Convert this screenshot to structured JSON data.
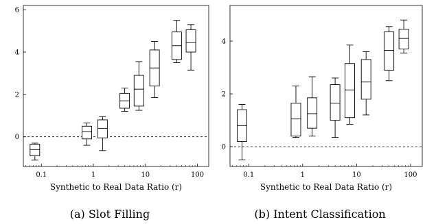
{
  "chart_data": [
    {
      "type": "box",
      "caption": "(a) Slot Filling",
      "xlabel": "Synthetic to Real Data Ratio (r)",
      "ylabel": "",
      "x_scale": "log",
      "xlim": [
        0.045,
        165
      ],
      "ylim": [
        -1.4,
        6.2
      ],
      "x_ticks": [
        {
          "value": 0.1,
          "label": "0.1"
        },
        {
          "value": 1,
          "label": "1"
        },
        {
          "value": 10,
          "label": "10"
        },
        {
          "value": 100,
          "label": "100"
        }
      ],
      "y_ticks": [
        {
          "value": 0,
          "label": "0"
        },
        {
          "value": 2,
          "label": "2"
        },
        {
          "value": 4,
          "label": "4"
        },
        {
          "value": 6,
          "label": "6"
        }
      ],
      "reference_line": {
        "y": 0,
        "style": "dashed"
      },
      "boxes": [
        {
          "x": 0.075,
          "whisker_low": -1.1,
          "q1": -0.9,
          "median": -0.6,
          "q3": -0.35,
          "whisker_high": -0.3
        },
        {
          "x": 0.75,
          "whisker_low": -0.4,
          "q1": -0.1,
          "median": 0.25,
          "q3": 0.5,
          "whisker_high": 0.65
        },
        {
          "x": 1.5,
          "whisker_low": -0.65,
          "q1": -0.05,
          "median": 0.4,
          "q3": 0.8,
          "whisker_high": 0.95
        },
        {
          "x": 4,
          "whisker_low": 1.2,
          "q1": 1.35,
          "median": 1.7,
          "q3": 2.05,
          "whisker_high": 2.3
        },
        {
          "x": 7.5,
          "whisker_low": 1.25,
          "q1": 1.45,
          "median": 2.25,
          "q3": 2.9,
          "whisker_high": 3.55
        },
        {
          "x": 15,
          "whisker_low": 1.85,
          "q1": 2.4,
          "median": 3.25,
          "q3": 4.1,
          "whisker_high": 4.5
        },
        {
          "x": 40,
          "whisker_low": 3.5,
          "q1": 3.65,
          "median": 4.3,
          "q3": 4.95,
          "whisker_high": 5.5
        },
        {
          "x": 75,
          "whisker_low": 3.15,
          "q1": 4.0,
          "median": 4.45,
          "q3": 5.05,
          "whisker_high": 5.3
        }
      ]
    },
    {
      "type": "box",
      "caption": "(b) Intent Classification",
      "xlabel": "Synthetic to Real Data Ratio (r)",
      "ylabel": "",
      "x_scale": "log",
      "xlim": [
        0.045,
        165
      ],
      "ylim": [
        -0.75,
        5.35
      ],
      "x_ticks": [
        {
          "value": 0.1,
          "label": "0.1"
        },
        {
          "value": 1,
          "label": "1"
        },
        {
          "value": 10,
          "label": "10"
        },
        {
          "value": 100,
          "label": "100"
        }
      ],
      "y_ticks": [
        {
          "value": 0,
          "label": "0"
        },
        {
          "value": 2,
          "label": "2"
        },
        {
          "value": 4,
          "label": "4"
        }
      ],
      "reference_line": {
        "y": 0,
        "style": "dashed"
      },
      "boxes": [
        {
          "x": 0.075,
          "whisker_low": -0.5,
          "q1": 0.2,
          "median": 0.8,
          "q3": 1.4,
          "whisker_high": 1.6
        },
        {
          "x": 0.75,
          "whisker_low": 0.35,
          "q1": 0.4,
          "median": 1.05,
          "q3": 1.65,
          "whisker_high": 2.3
        },
        {
          "x": 1.5,
          "whisker_low": 0.4,
          "q1": 0.7,
          "median": 1.25,
          "q3": 1.85,
          "whisker_high": 2.65
        },
        {
          "x": 4,
          "whisker_low": 0.35,
          "q1": 1.0,
          "median": 1.65,
          "q3": 2.35,
          "whisker_high": 2.6
        },
        {
          "x": 7.5,
          "whisker_low": 0.85,
          "q1": 1.1,
          "median": 2.15,
          "q3": 3.15,
          "whisker_high": 3.85
        },
        {
          "x": 15,
          "whisker_low": 1.2,
          "q1": 1.8,
          "median": 2.45,
          "q3": 3.3,
          "whisker_high": 3.6
        },
        {
          "x": 40,
          "whisker_low": 2.5,
          "q1": 2.9,
          "median": 3.65,
          "q3": 4.35,
          "whisker_high": 4.55
        },
        {
          "x": 75,
          "whisker_low": 3.55,
          "q1": 3.7,
          "median": 4.1,
          "q3": 4.45,
          "whisker_high": 4.8
        }
      ]
    }
  ]
}
